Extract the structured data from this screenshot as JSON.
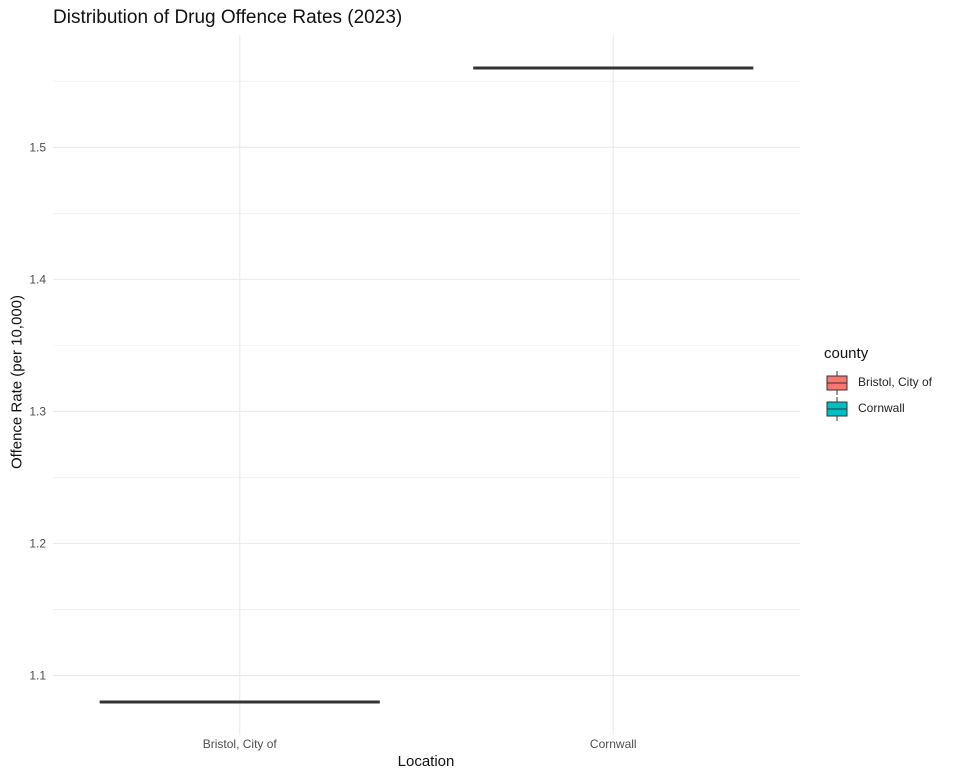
{
  "chart_data": {
    "type": "boxplot",
    "title": "Distribution of Drug Offence Rates (2023)",
    "xlabel": "Location",
    "ylabel": "Offence Rate (per 10,000)",
    "categories": [
      "Bristol, City of",
      "Cornwall"
    ],
    "values": [
      1.08,
      1.56
    ],
    "ylim": [
      1.055,
      1.585
    ],
    "yticks": [
      1.1,
      1.2,
      1.3,
      1.4,
      1.5
    ],
    "ytick_labels": [
      "1.1",
      "1.2",
      "1.3",
      "1.4",
      "1.5"
    ],
    "grid": true,
    "legend": {
      "title": "county",
      "position": "right",
      "entries": [
        {
          "label": "Bristol, City of",
          "color": "#F8766D"
        },
        {
          "label": "Cornwall",
          "color": "#00BFC4"
        }
      ]
    },
    "colors": {
      "grid": "#ebebeb",
      "median": "#333333",
      "text": "#4d4d4d"
    }
  }
}
